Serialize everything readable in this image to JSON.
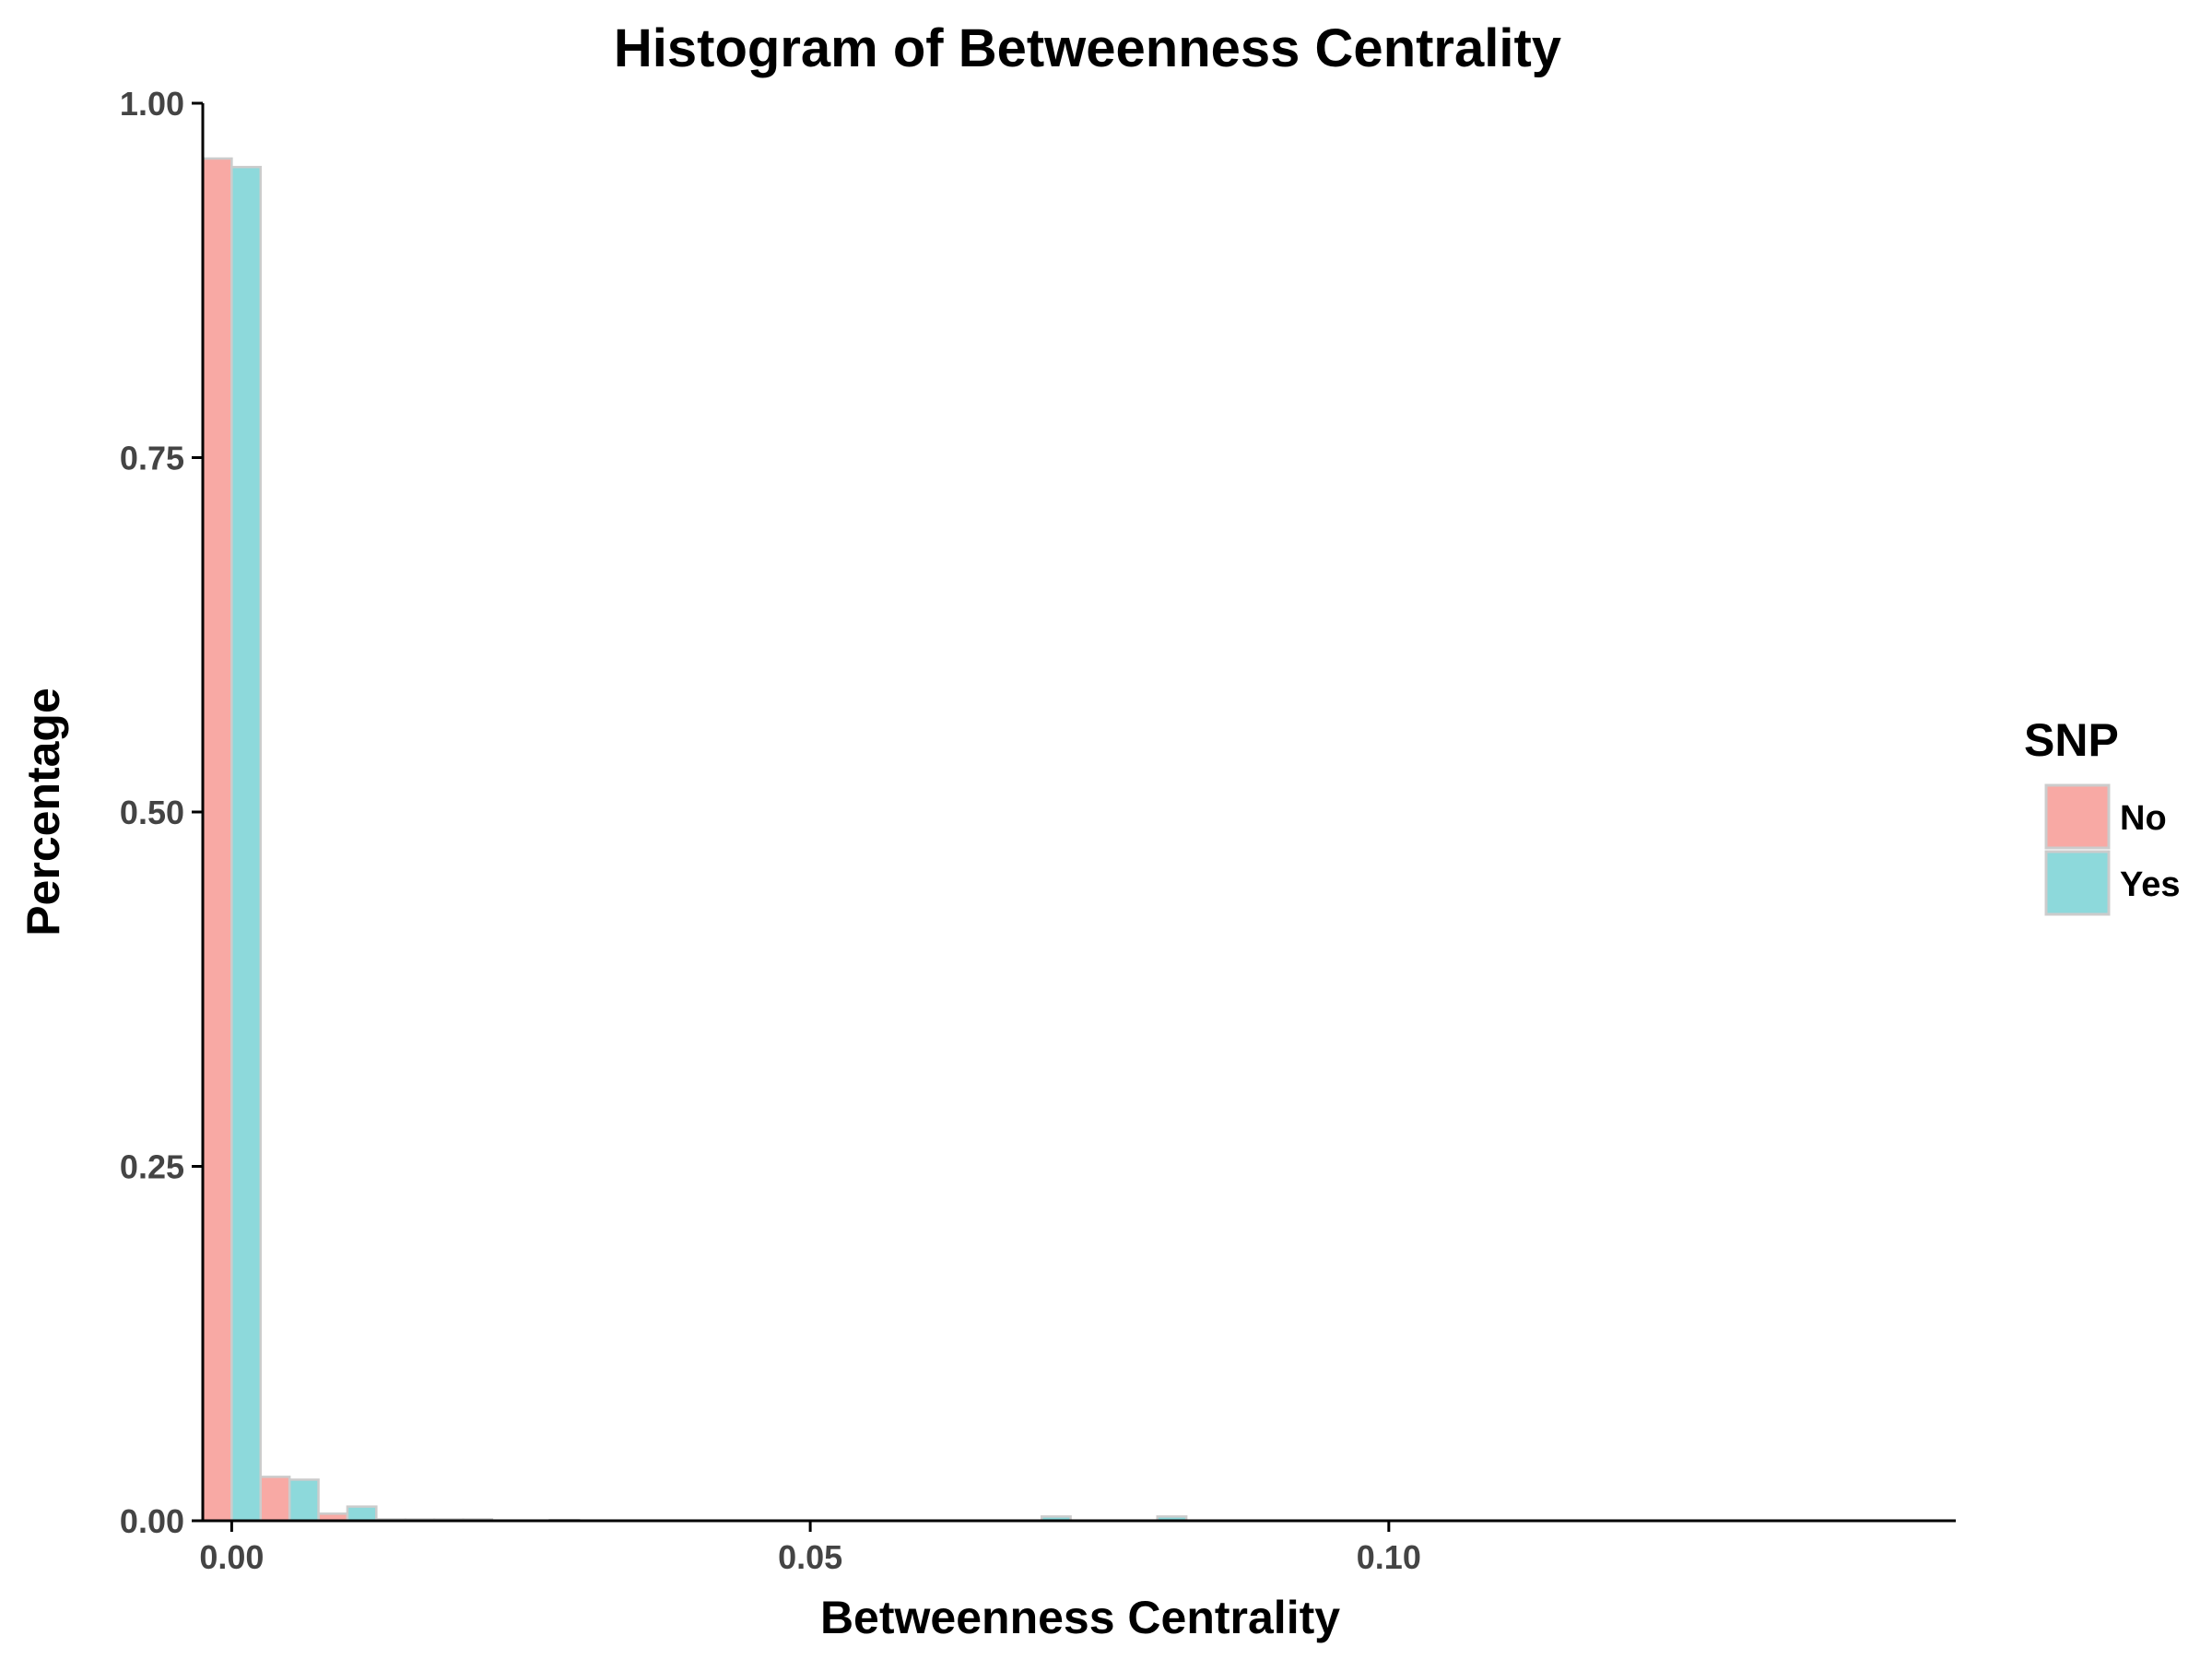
{
  "chart_data": {
    "type": "bar",
    "title": "Histogram of Betweenness Centrality",
    "xlabel": "Betweenness Centrality",
    "ylabel": "Percentage",
    "xlim": [
      -0.0025,
      0.149
    ],
    "ylim": [
      0,
      1.0
    ],
    "x_ticks": [
      0.0,
      0.05,
      0.1
    ],
    "x_tick_labels": [
      "0.00",
      "0.05",
      "0.10"
    ],
    "y_ticks": [
      0.0,
      0.25,
      0.5,
      0.75,
      1.0
    ],
    "y_tick_labels": [
      "0.00",
      "0.25",
      "0.50",
      "0.75",
      "1.00"
    ],
    "grid": false,
    "legend": {
      "title": "SNP",
      "position": "right"
    },
    "bin_width": 0.005,
    "bin_centers": [
      0.0,
      0.005,
      0.01,
      0.015,
      0.02,
      0.025,
      0.03,
      0.035,
      0.04,
      0.045,
      0.05,
      0.055,
      0.06,
      0.065,
      0.07,
      0.075,
      0.08,
      0.085,
      0.09
    ],
    "series": [
      {
        "name": "No",
        "color": "#F8A9A4",
        "values": [
          0.961,
          0.031,
          0.005,
          0.001,
          0.001,
          0.0,
          0.0005,
          0.0,
          0.0,
          0.0,
          0.0,
          0.0,
          0.0,
          0.0,
          0.0,
          0.0,
          0.0,
          0.0,
          0.0
        ]
      },
      {
        "name": "Yes",
        "color": "#8DD9DB",
        "values": [
          0.955,
          0.029,
          0.01,
          0.001,
          0.001,
          0.0,
          0.0,
          0.0,
          0.0,
          0.0,
          0.0,
          0.0,
          0.0,
          0.0,
          0.003,
          0.0,
          0.003,
          0.0,
          0.0
        ]
      }
    ],
    "bar_outline_color": "#CCCCCC"
  }
}
